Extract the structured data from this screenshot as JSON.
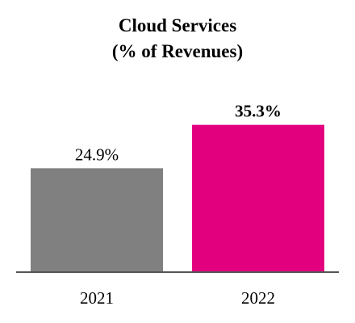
{
  "chart_data": {
    "type": "bar",
    "title": "Cloud Services",
    "subtitle": "(% of Revenues)",
    "categories": [
      "2021",
      "2022"
    ],
    "values": [
      24.9,
      35.3
    ],
    "value_labels": [
      "24.9%",
      "35.3%"
    ],
    "bar_colors": [
      "#808080",
      "#e3007f"
    ],
    "highlight_label_bold": [
      false,
      true
    ],
    "ylim": [
      0,
      42
    ],
    "grid": false,
    "legend": "none",
    "baseline_color": "#555555"
  }
}
